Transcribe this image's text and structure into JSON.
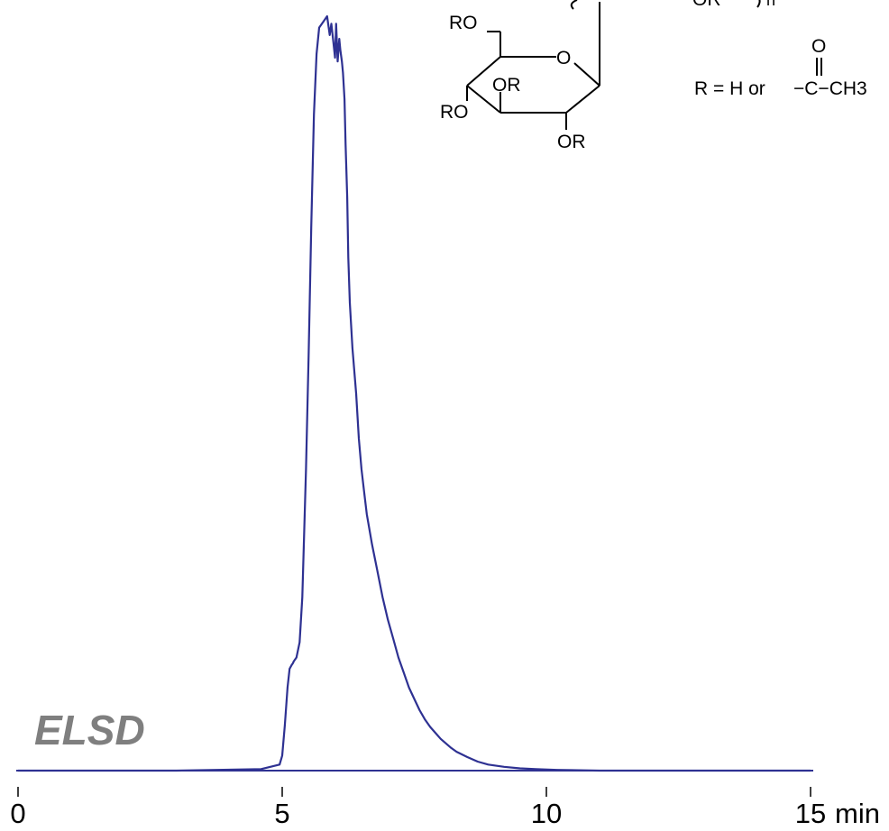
{
  "detector_label": "ELSD",
  "structure": {
    "substituent_labels": [
      "RO",
      "O",
      "OR",
      "RO",
      "OR"
    ],
    "top_fragment_label": "OR",
    "repeat_label": "n",
    "r_group_definition": "R = H or",
    "acetyl_oxygen": "O",
    "acetyl_fragment": "−C−CH3"
  },
  "chart_data": {
    "type": "line",
    "xlabel": "",
    "ylabel": "",
    "x_unit_label": "min",
    "x_ticks": [
      0,
      5,
      10,
      15
    ],
    "x_tick_labels": [
      "0",
      "5",
      "10",
      "15"
    ],
    "xlim": [
      0,
      15.3
    ],
    "ylim": [
      0,
      1.03
    ],
    "grid": false,
    "legend": "none",
    "line_color": "#2e3192",
    "series": [
      {
        "x": [
          0.0,
          3.0,
          4.6,
          4.95,
          5.0,
          5.05,
          5.1,
          5.14,
          5.18,
          5.2,
          5.22,
          5.27,
          5.33,
          5.38,
          5.45,
          5.5,
          5.55,
          5.6,
          5.65,
          5.7,
          5.75,
          5.8,
          5.85,
          5.9,
          5.93,
          5.97,
          6.0,
          6.02,
          6.05,
          6.08,
          6.1,
          6.13,
          6.15,
          6.18,
          6.2,
          6.23,
          6.25,
          6.28,
          6.33,
          6.4,
          6.45,
          6.5,
          6.55,
          6.6,
          6.7,
          6.8,
          6.9,
          7.0,
          7.1,
          7.2,
          7.3,
          7.4,
          7.5,
          7.6,
          7.7,
          7.8,
          7.9,
          8.0,
          8.1,
          8.2,
          8.3,
          8.5,
          8.7,
          8.9,
          9.2,
          9.5,
          9.8,
          10.2,
          11.0,
          12.0,
          13.0,
          14.0,
          15.0
        ],
        "y": [
          0.0,
          0.0,
          0.002,
          0.008,
          0.02,
          0.06,
          0.11,
          0.135,
          0.14,
          0.142,
          0.145,
          0.15,
          0.17,
          0.23,
          0.4,
          0.55,
          0.72,
          0.87,
          0.95,
          0.985,
          0.99,
          0.995,
          1.0,
          0.975,
          0.99,
          0.965,
          0.945,
          0.99,
          0.94,
          0.97,
          0.955,
          0.94,
          0.925,
          0.89,
          0.83,
          0.76,
          0.68,
          0.62,
          0.56,
          0.5,
          0.44,
          0.4,
          0.37,
          0.34,
          0.3,
          0.265,
          0.23,
          0.2,
          0.175,
          0.15,
          0.13,
          0.11,
          0.095,
          0.08,
          0.068,
          0.058,
          0.05,
          0.042,
          0.036,
          0.03,
          0.025,
          0.018,
          0.012,
          0.008,
          0.005,
          0.003,
          0.002,
          0.001,
          0.0,
          0.0,
          0.0,
          0.0,
          0.0
        ]
      }
    ]
  }
}
